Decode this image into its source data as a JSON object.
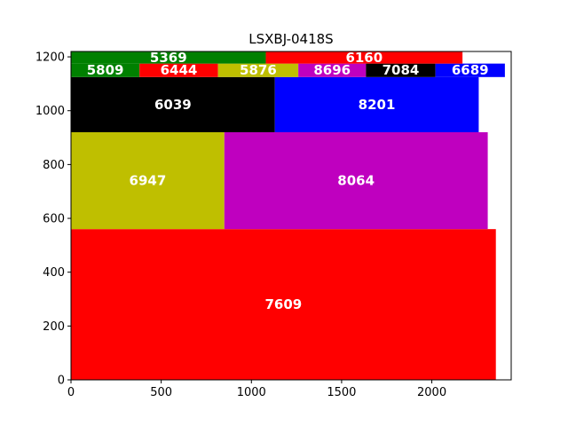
{
  "chart_data": {
    "type": "treemap",
    "title": "LSXBJ-0418S",
    "xlabel": "",
    "ylabel": "",
    "xlim": [
      0,
      2440
    ],
    "ylim": [
      0,
      1220
    ],
    "xticks": [
      0,
      500,
      1000,
      1500,
      2000
    ],
    "yticks": [
      0,
      200,
      400,
      600,
      800,
      1000,
      1200
    ],
    "grid": false,
    "rects": [
      {
        "label": "7609",
        "x0": 0,
        "y0": 0,
        "x1": 2355,
        "y1": 560,
        "color": "#ff0000"
      },
      {
        "label": "6947",
        "x0": 0,
        "y0": 560,
        "x1": 850,
        "y1": 920,
        "color": "#bfbf00"
      },
      {
        "label": "8064",
        "x0": 850,
        "y0": 560,
        "x1": 2310,
        "y1": 920,
        "color": "#bf00bf"
      },
      {
        "label": "6039",
        "x0": 0,
        "y0": 920,
        "x1": 1130,
        "y1": 1125,
        "color": "#000000"
      },
      {
        "label": "8201",
        "x0": 1130,
        "y0": 920,
        "x1": 2260,
        "y1": 1125,
        "color": "#0000ff"
      },
      {
        "label": "5809",
        "x0": 0,
        "y0": 1125,
        "x1": 380,
        "y1": 1175,
        "color": "#008000"
      },
      {
        "label": "6444",
        "x0": 380,
        "y0": 1125,
        "x1": 815,
        "y1": 1175,
        "color": "#ff0000"
      },
      {
        "label": "5876",
        "x0": 815,
        "y0": 1125,
        "x1": 1260,
        "y1": 1175,
        "color": "#bfbf00"
      },
      {
        "label": "8696",
        "x0": 1260,
        "y0": 1125,
        "x1": 1635,
        "y1": 1175,
        "color": "#bf00bf"
      },
      {
        "label": "7084",
        "x0": 1635,
        "y0": 1125,
        "x1": 2020,
        "y1": 1175,
        "color": "#000000"
      },
      {
        "label": "6689",
        "x0": 2020,
        "y0": 1125,
        "x1": 2405,
        "y1": 1175,
        "color": "#0000ff"
      },
      {
        "label": "5369",
        "x0": 0,
        "y0": 1175,
        "x1": 1080,
        "y1": 1220,
        "color": "#008000"
      },
      {
        "label": "6160",
        "x0": 1080,
        "y0": 1175,
        "x1": 2170,
        "y1": 1220,
        "color": "#ff0000"
      }
    ]
  }
}
